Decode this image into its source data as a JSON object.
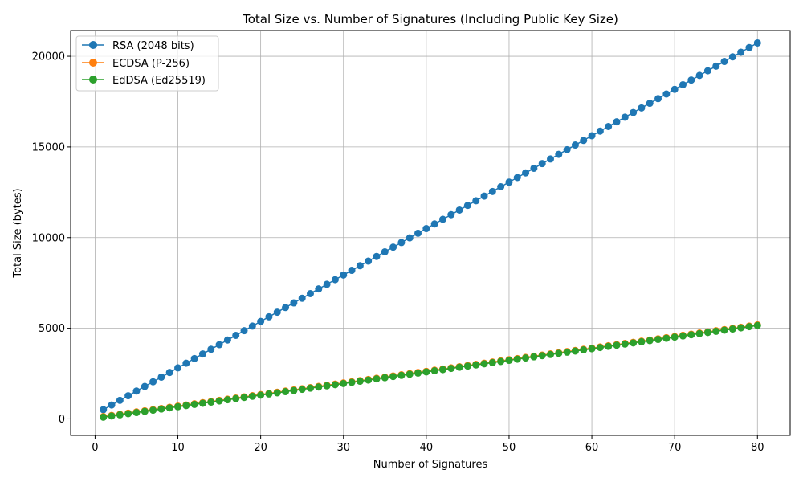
{
  "chart_data": {
    "type": "line",
    "title": "Total Size vs. Number of Signatures (Including Public Key Size)",
    "xlabel": "Number of Signatures",
    "ylabel": "Total Size (bytes)",
    "xlim": [
      -2.95,
      83.95
    ],
    "ylim": [
      -910,
      21420
    ],
    "xticks": [
      0,
      10,
      20,
      30,
      40,
      50,
      60,
      70,
      80
    ],
    "yticks": [
      0,
      5000,
      10000,
      15000,
      20000
    ],
    "grid": true,
    "legend": "top-left",
    "marker": "circle",
    "x": {
      "start": 1,
      "end": 80
    },
    "series": [
      {
        "name": "RSA (2048 bits)",
        "color": "#1f77b4",
        "intercept": 256,
        "slope": 256
      },
      {
        "name": "ECDSA (P-256)",
        "color": "#ff7f0e",
        "intercept": 65,
        "slope": 64
      },
      {
        "name": "EdDSA (Ed25519)",
        "color": "#2ca02c",
        "intercept": 32,
        "slope": 64
      }
    ]
  }
}
